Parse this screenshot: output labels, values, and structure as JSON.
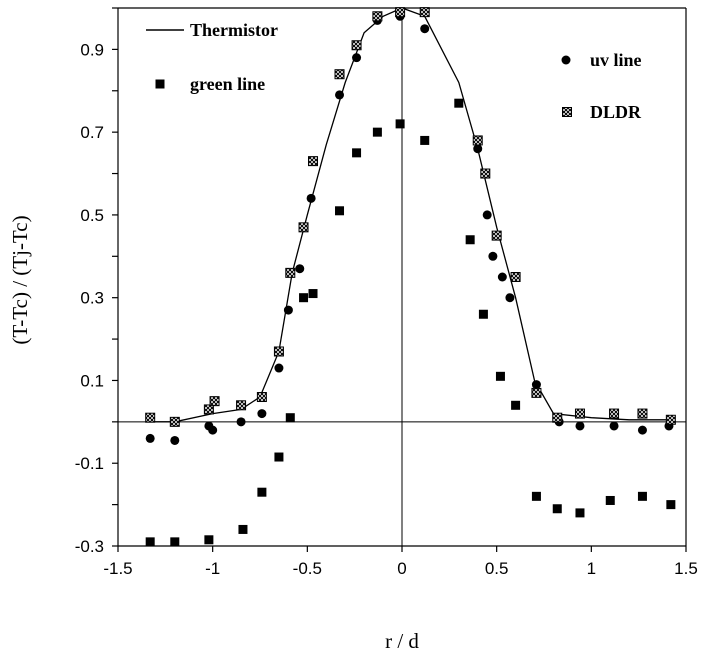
{
  "chart_data": {
    "type": "scatter",
    "xlabel": "r / d",
    "ylabel": "(T-Tc) / (Tj-Tc)",
    "xlim": [
      -1.5,
      1.5
    ],
    "ylim": [
      -0.3,
      1.0
    ],
    "xticks": [
      -1.5,
      -1,
      -0.5,
      0,
      0.5,
      1,
      1.5
    ],
    "xtick_labels": [
      "-1.5",
      "-1",
      "-0.5",
      "0",
      "0.5",
      "1",
      "1.5"
    ],
    "yticks": [
      -0.3,
      -0.1,
      0.1,
      0.3,
      0.5,
      0.7,
      0.9
    ],
    "ytick_labels": [
      "-0.3",
      "-0.1",
      "0.1",
      "0.3",
      "0.5",
      "0.7",
      "0.9"
    ],
    "grid": false,
    "legend": [
      "top-left",
      "top-right"
    ],
    "series": [
      {
        "name": "Thermistor",
        "marker": "line",
        "x": [
          -1.33,
          -1.2,
          -1.0,
          -0.85,
          -0.75,
          -0.65,
          -0.58,
          -0.5,
          -0.4,
          -0.3,
          -0.2,
          -0.1,
          0.0,
          0.12,
          0.3,
          0.4,
          0.5,
          0.6,
          0.7,
          0.8,
          1.0,
          1.2,
          1.42
        ],
        "y": [
          0.0,
          0.0,
          0.02,
          0.03,
          0.06,
          0.17,
          0.36,
          0.5,
          0.67,
          0.82,
          0.94,
          0.98,
          1.0,
          0.98,
          0.82,
          0.66,
          0.47,
          0.3,
          0.1,
          0.02,
          0.01,
          0.005,
          0.005
        ]
      },
      {
        "name": "uv line",
        "marker": "circle",
        "x": [
          -1.33,
          -1.2,
          -1.02,
          -1.0,
          -0.85,
          -0.74,
          -0.65,
          -0.6,
          -0.54,
          -0.48,
          -0.33,
          -0.24,
          -0.13,
          -0.01,
          0.12,
          0.4,
          0.45,
          0.48,
          0.53,
          0.57,
          0.71,
          0.83,
          0.94,
          1.12,
          1.27,
          1.41
        ],
        "y": [
          -0.04,
          -0.045,
          -0.01,
          -0.02,
          0.0,
          0.02,
          0.13,
          0.27,
          0.37,
          0.54,
          0.79,
          0.88,
          0.97,
          0.98,
          0.95,
          0.66,
          0.5,
          0.4,
          0.35,
          0.3,
          0.09,
          0.0,
          -0.01,
          -0.01,
          -0.02,
          -0.01
        ]
      },
      {
        "name": "green line",
        "marker": "square",
        "x": [
          -1.33,
          -1.2,
          -1.02,
          -0.84,
          -0.74,
          -0.65,
          -0.59,
          -0.52,
          -0.47,
          -0.33,
          -0.24,
          -0.13,
          -0.01,
          0.12,
          0.3,
          0.36,
          0.43,
          0.52,
          0.6,
          0.71,
          0.82,
          0.94,
          1.1,
          1.27,
          1.42
        ],
        "y": [
          -0.29,
          -0.29,
          -0.285,
          -0.26,
          -0.17,
          -0.085,
          0.01,
          0.3,
          0.31,
          0.51,
          0.65,
          0.7,
          0.72,
          0.68,
          0.77,
          0.44,
          0.26,
          0.11,
          0.04,
          -0.18,
          -0.21,
          -0.22,
          -0.19,
          -0.18,
          -0.2
        ]
      },
      {
        "name": "DLDR",
        "marker": "hatched-square",
        "x": [
          -1.33,
          -1.2,
          -1.02,
          -0.99,
          -0.85,
          -0.74,
          -0.65,
          -0.59,
          -0.52,
          -0.47,
          -0.33,
          -0.24,
          -0.13,
          -0.01,
          0.12,
          0.4,
          0.44,
          0.5,
          0.6,
          0.71,
          0.82,
          0.94,
          1.12,
          1.27,
          1.42
        ],
        "y": [
          0.01,
          0.0,
          0.03,
          0.05,
          0.04,
          0.06,
          0.17,
          0.36,
          0.47,
          0.63,
          0.84,
          0.91,
          0.98,
          0.99,
          0.99,
          0.68,
          0.6,
          0.45,
          0.35,
          0.07,
          0.01,
          0.02,
          0.02,
          0.02,
          0.005
        ]
      }
    ]
  }
}
